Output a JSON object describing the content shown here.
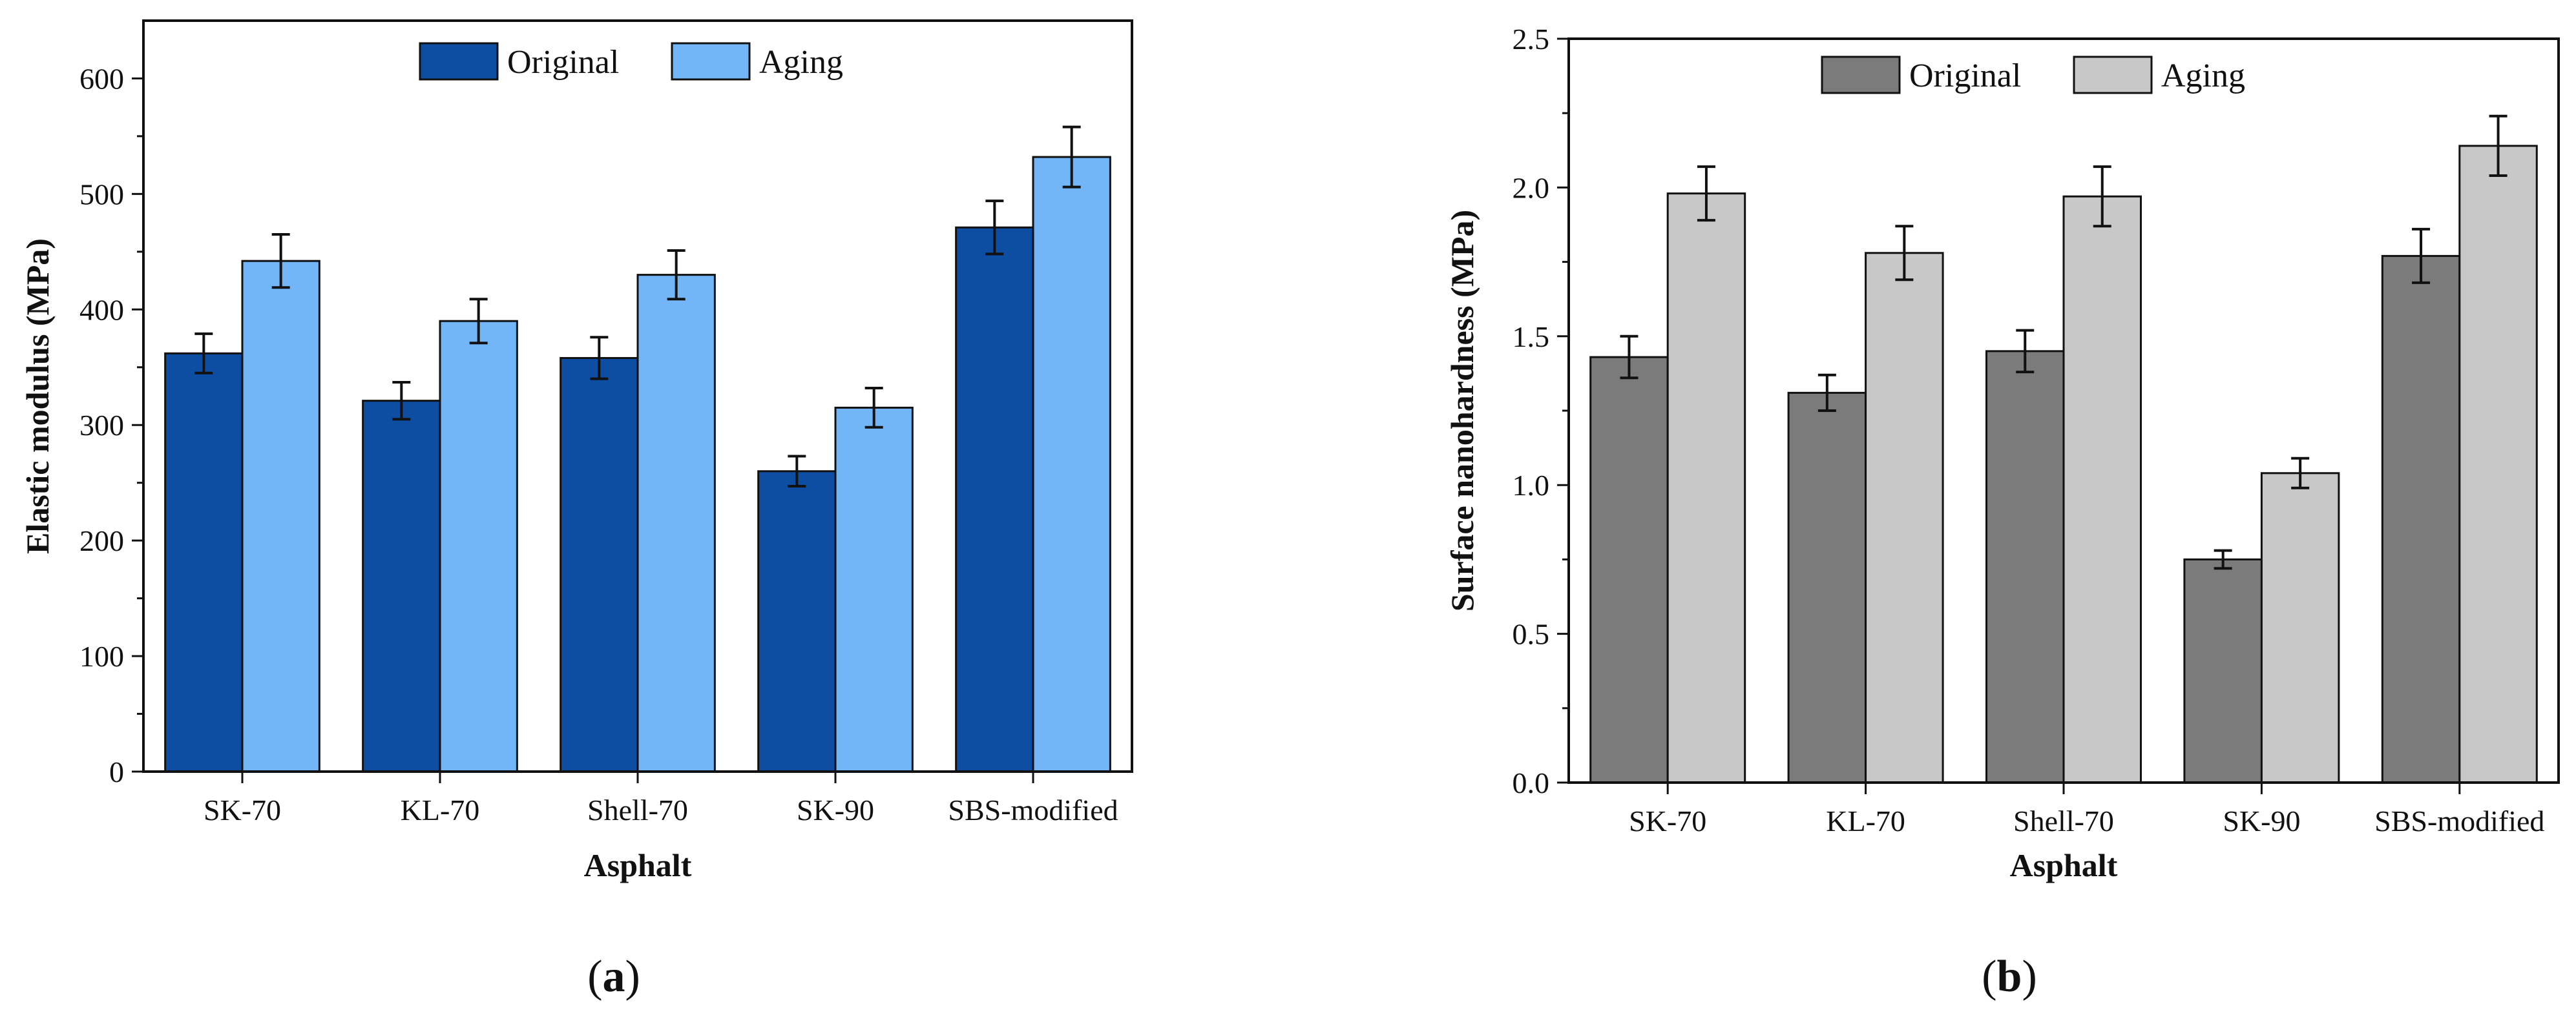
{
  "chart_data": [
    {
      "type": "bar",
      "panel": "a",
      "categories": [
        "SK-70",
        "KL-70",
        "Shell-70",
        "SK-90",
        "SBS-modified"
      ],
      "series": [
        {
          "name": "Original",
          "values": [
            362,
            321,
            358,
            260,
            471
          ],
          "errors": [
            17,
            16,
            18,
            13,
            23
          ],
          "color": "#0d4ea3"
        },
        {
          "name": "Aging",
          "values": [
            442,
            390,
            430,
            315,
            532
          ],
          "errors": [
            23,
            19,
            21,
            17,
            26
          ],
          "color": "#72b6f7"
        }
      ],
      "xlabel": "Asphalt",
      "ylabel": "Elastic modulus (MPa)",
      "ylim": [
        0,
        650
      ],
      "yticks": [
        0,
        100,
        200,
        300,
        400,
        500,
        600
      ],
      "ytick_labels": [
        "0",
        "100",
        "200",
        "300",
        "400",
        "500",
        "600"
      ],
      "legend": "top-center",
      "grid": false
    },
    {
      "type": "bar",
      "panel": "b",
      "categories": [
        "SK-70",
        "KL-70",
        "Shell-70",
        "SK-90",
        "SBS-modified"
      ],
      "series": [
        {
          "name": "Original",
          "values": [
            1.43,
            1.31,
            1.45,
            0.75,
            1.77
          ],
          "errors": [
            0.07,
            0.06,
            0.07,
            0.03,
            0.09
          ],
          "color": "#7b7b7b"
        },
        {
          "name": "Aging",
          "values": [
            1.98,
            1.78,
            1.97,
            1.04,
            2.14
          ],
          "errors": [
            0.09,
            0.09,
            0.1,
            0.05,
            0.1
          ],
          "color": "#c8c8c8"
        }
      ],
      "xlabel": "Asphalt",
      "ylabel": "Surface nanohardness (MPa)",
      "ylim": [
        0,
        2.5
      ],
      "yticks": [
        0,
        0.5,
        1,
        1.5,
        2,
        2.5
      ],
      "ytick_labels": [
        "0.0",
        "0.5",
        "1.0",
        "1.5",
        "2.0",
        "2.5"
      ],
      "legend": "top-center",
      "grid": false
    }
  ],
  "panels": [
    {
      "open": "(",
      "letter": "a",
      "close": ")"
    },
    {
      "open": "(",
      "letter": "b",
      "close": ")"
    }
  ]
}
